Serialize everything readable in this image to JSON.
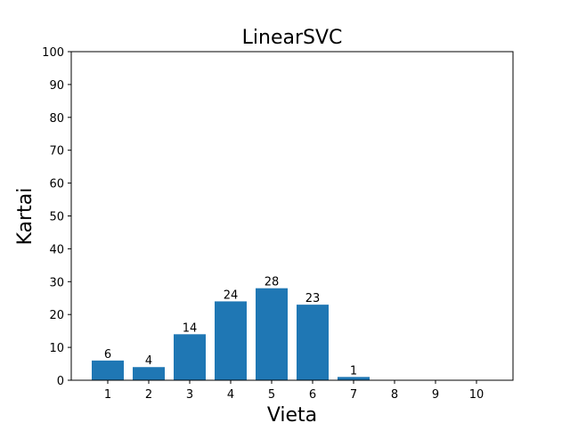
{
  "chart_data": {
    "type": "bar",
    "title": "LinearSVC",
    "xlabel": "Vieta",
    "ylabel": "Kartai",
    "categories": [
      "1",
      "2",
      "3",
      "4",
      "5",
      "6",
      "7",
      "8",
      "9",
      "10"
    ],
    "values": [
      6,
      4,
      14,
      24,
      28,
      23,
      1,
      0,
      0,
      0
    ],
    "data_labels": [
      "6",
      "4",
      "14",
      "24",
      "28",
      "23",
      "1",
      "",
      "",
      ""
    ],
    "ylim": [
      0,
      100
    ],
    "yticks": [
      0,
      10,
      20,
      30,
      40,
      50,
      60,
      70,
      80,
      90,
      100
    ],
    "grid": false,
    "legend": "none",
    "bar_color": "#1f77b4"
  }
}
